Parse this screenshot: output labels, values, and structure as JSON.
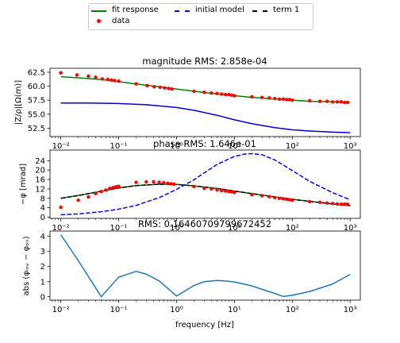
{
  "legend": {
    "items": [
      {
        "label": "fit response",
        "color": "#008000",
        "style": "solid-line"
      },
      {
        "label": "initial model",
        "color": "#0000ff",
        "style": "dashed-line"
      },
      {
        "label": "term 1",
        "color": "#000000",
        "style": "dashed-line"
      },
      {
        "label": "data",
        "color": "#ff0000",
        "style": "marker"
      }
    ]
  },
  "xlabel": "frequency [Hz]",
  "chart_data": [
    {
      "type": "scatter",
      "title": "magnitude RMS: 2.858e-04",
      "ylabel": "|Z/ρ|[Ω(m)]",
      "xscale": "log",
      "xlim": [
        0.0065,
        1500
      ],
      "ylim": [
        51.0,
        63.2
      ],
      "yticks": [
        52.5,
        55.0,
        57.5,
        60.0,
        62.5
      ],
      "yticklabels": [
        "52.5",
        "55.0",
        "57.5",
        "60.0",
        "62.5"
      ],
      "xticks": [
        0.01,
        0.1,
        1,
        10,
        100,
        1000
      ],
      "xticklabels": [
        "10⁻²",
        "10⁻¹",
        "10⁰",
        "10¹",
        "10²",
        "10³"
      ],
      "series": [
        {
          "name": "fit response",
          "style": "solid",
          "color": "#008000",
          "x": [
            0.01,
            0.02,
            0.05,
            0.1,
            0.2,
            0.5,
            1,
            2,
            5,
            10,
            20,
            50,
            100,
            200,
            500,
            1000
          ],
          "y": [
            61.7,
            61.5,
            61.2,
            60.8,
            60.4,
            59.9,
            59.5,
            59.1,
            58.6,
            58.3,
            58.0,
            57.7,
            57.5,
            57.3,
            57.2,
            57.1
          ]
        },
        {
          "name": "initial model",
          "style": "solid",
          "color": "#0000cc",
          "x": [
            0.01,
            0.03,
            0.1,
            0.3,
            1,
            2,
            5,
            10,
            20,
            50,
            100,
            200,
            500,
            1000
          ],
          "y": [
            57.0,
            57.0,
            56.9,
            56.7,
            56.2,
            55.7,
            54.8,
            54.0,
            53.3,
            52.6,
            52.2,
            52.0,
            51.8,
            51.7
          ]
        },
        {
          "name": "data",
          "style": "marker",
          "color": "#ff0000",
          "x": [
            0.01,
            0.019,
            0.03,
            0.04,
            0.052,
            0.065,
            0.075,
            0.085,
            0.1,
            0.2,
            0.31,
            0.41,
            0.52,
            0.62,
            0.73,
            0.83,
            2.0,
            3.0,
            4.0,
            5.0,
            6.0,
            7.0,
            8.0,
            9.0,
            10.0,
            20,
            30,
            40,
            50,
            60,
            70,
            80,
            90,
            100,
            200,
            300,
            400,
            500,
            600,
            700,
            800,
            900
          ],
          "y": [
            62.4,
            62.0,
            61.8,
            61.6,
            61.3,
            61.2,
            61.1,
            61.0,
            60.9,
            60.4,
            60.1,
            59.9,
            59.8,
            59.7,
            59.6,
            59.5,
            59.1,
            58.9,
            58.8,
            58.7,
            58.6,
            58.5,
            58.5,
            58.4,
            58.3,
            58.1,
            58.0,
            57.9,
            57.8,
            57.7,
            57.7,
            57.6,
            57.6,
            57.5,
            57.4,
            57.3,
            57.3,
            57.2,
            57.2,
            57.2,
            57.1,
            57.1
          ]
        }
      ]
    },
    {
      "type": "scatter",
      "title": "phase RMS: 1.646e-01",
      "ylabel": "−φ [mrad]",
      "xscale": "log",
      "xlim": [
        0.0065,
        1500
      ],
      "ylim": [
        -0.5,
        28.5
      ],
      "yticks": [
        0,
        4,
        8,
        12,
        16,
        20,
        24
      ],
      "yticklabels": [
        "0",
        "4",
        "8",
        "12",
        "16",
        "20",
        "24"
      ],
      "xticks": [
        0.01,
        0.1,
        1,
        10,
        100,
        1000
      ],
      "xticklabels": [
        "10⁻²",
        "10⁻¹",
        "10⁰",
        "10¹",
        "10²",
        "10³"
      ],
      "series": [
        {
          "name": "fit response",
          "style": "solid",
          "color": "#008000",
          "x": [
            0.01,
            0.02,
            0.05,
            0.1,
            0.2,
            0.5,
            1,
            2,
            5,
            10,
            20,
            50,
            100,
            200,
            500,
            1000
          ],
          "y": [
            8.0,
            9.2,
            11.0,
            12.4,
            13.4,
            14.0,
            13.9,
            13.3,
            12.2,
            11.1,
            10.0,
            8.6,
            7.6,
            6.7,
            5.6,
            4.9
          ]
        },
        {
          "name": "term 1",
          "style": "dashed",
          "color": "#000000",
          "x": [
            0.01,
            0.02,
            0.05,
            0.1,
            0.2,
            0.5,
            1,
            2,
            5,
            10,
            20,
            50,
            100,
            200,
            500,
            1000
          ],
          "y": [
            8.0,
            9.2,
            11.0,
            12.4,
            13.4,
            14.0,
            13.9,
            13.3,
            12.2,
            11.1,
            10.0,
            8.6,
            7.6,
            6.7,
            5.6,
            4.9
          ]
        },
        {
          "name": "initial model",
          "style": "dashed",
          "color": "#0000ff",
          "x": [
            0.01,
            0.02,
            0.05,
            0.1,
            0.2,
            0.5,
            1,
            2,
            3,
            5,
            10,
            15,
            20,
            30,
            50,
            100,
            200,
            500,
            1000
          ],
          "y": [
            1.0,
            1.4,
            2.3,
            3.4,
            5.0,
            8.3,
            11.8,
            15.9,
            18.8,
            22.4,
            25.8,
            26.8,
            27.0,
            26.5,
            24.3,
            19.8,
            15.2,
            10.4,
            7.4
          ]
        },
        {
          "name": "data",
          "style": "marker",
          "color": "#ff0000",
          "x": [
            0.01,
            0.02,
            0.03,
            0.04,
            0.05,
            0.06,
            0.07,
            0.08,
            0.09,
            0.1,
            0.2,
            0.3,
            0.4,
            0.5,
            0.6,
            0.7,
            0.8,
            0.9,
            2,
            3,
            4,
            5,
            6,
            7,
            8,
            9,
            10,
            20,
            30,
            40,
            50,
            60,
            70,
            80,
            90,
            100,
            200,
            300,
            400,
            500,
            600,
            700,
            800,
            900
          ],
          "y": [
            4.2,
            7.2,
            8.6,
            10.0,
            10.9,
            11.5,
            12.2,
            12.6,
            12.9,
            13.1,
            14.8,
            15.0,
            15.0,
            14.8,
            14.6,
            14.4,
            14.2,
            14.0,
            13.0,
            12.3,
            12.0,
            11.6,
            11.3,
            11.1,
            10.9,
            10.8,
            10.5,
            9.6,
            9.1,
            8.7,
            8.3,
            8.0,
            7.8,
            7.6,
            7.4,
            7.2,
            6.6,
            6.3,
            6.0,
            5.8,
            5.6,
            5.5,
            5.5,
            5.5
          ]
        }
      ]
    },
    {
      "type": "line",
      "title": "RMS: 0.16460709799672452",
      "ylabel": "abs (φᵢₙᵥ − φₒᵣᵢ)",
      "xscale": "log",
      "xlim": [
        0.0065,
        1500
      ],
      "ylim": [
        -0.22,
        4.35
      ],
      "yticks": [
        0,
        1,
        2,
        3,
        4
      ],
      "yticklabels": [
        "0",
        "1",
        "2",
        "3",
        "4"
      ],
      "xticks": [
        0.01,
        0.1,
        1,
        10,
        100,
        1000
      ],
      "xticklabels": [
        "10⁻²",
        "10⁻¹",
        "10⁰",
        "10¹",
        "10²",
        "10³"
      ],
      "series": [
        {
          "name": "",
          "style": "solid",
          "color": "#1f77b4",
          "x": [
            0.01,
            0.02,
            0.05,
            0.1,
            0.2,
            0.3,
            0.5,
            1,
            2,
            3,
            5,
            7,
            10,
            20,
            50,
            70,
            100,
            200,
            500,
            1000
          ],
          "y": [
            4.1,
            2.4,
            0.0,
            1.3,
            1.68,
            1.5,
            1.05,
            0.05,
            0.75,
            1.0,
            1.08,
            1.05,
            0.98,
            0.72,
            0.22,
            0.02,
            0.1,
            0.35,
            0.85,
            1.48
          ]
        }
      ]
    }
  ]
}
